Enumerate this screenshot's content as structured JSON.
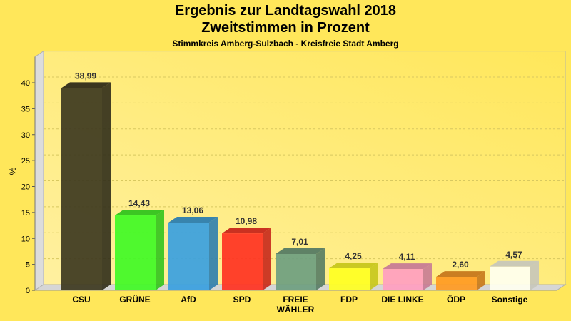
{
  "chart_data": {
    "type": "bar",
    "title": "Ergebnis zur Landtagswahl 2018",
    "title_line2": "Zweitstimmen in Prozent",
    "subtitle": "Stimmkreis Amberg-Sulzbach - Kreisfreie Stadt Amberg",
    "ylabel": "%",
    "xlabel": "",
    "ylim": [
      0,
      40
    ],
    "yticks": [
      "0",
      "5",
      "10",
      "15",
      "20",
      "25",
      "30",
      "35",
      "40"
    ],
    "grid": true,
    "style": "3d",
    "categories": [
      "CSU",
      "GRÜNE",
      "AfD",
      "SPD",
      "FREIE WÄHLER",
      "FDP",
      "DIE LINKE",
      "ÖDP",
      "Sonstige"
    ],
    "values": [
      38.99,
      14.43,
      13.06,
      10.98,
      7.01,
      4.25,
      4.11,
      2.6,
      4.57
    ],
    "data_labels": [
      "38,99",
      "14,43",
      "13,06",
      "10,98",
      "7,01",
      "4,25",
      "4,11",
      "2,60",
      "4,57"
    ],
    "colors": [
      "#3d3820",
      "#40fa25",
      "#3aa0e0",
      "#ff3222",
      "#6e9e80",
      "#ffff22",
      "#ff9ec0",
      "#ff9a22",
      "#fffff0"
    ]
  }
}
